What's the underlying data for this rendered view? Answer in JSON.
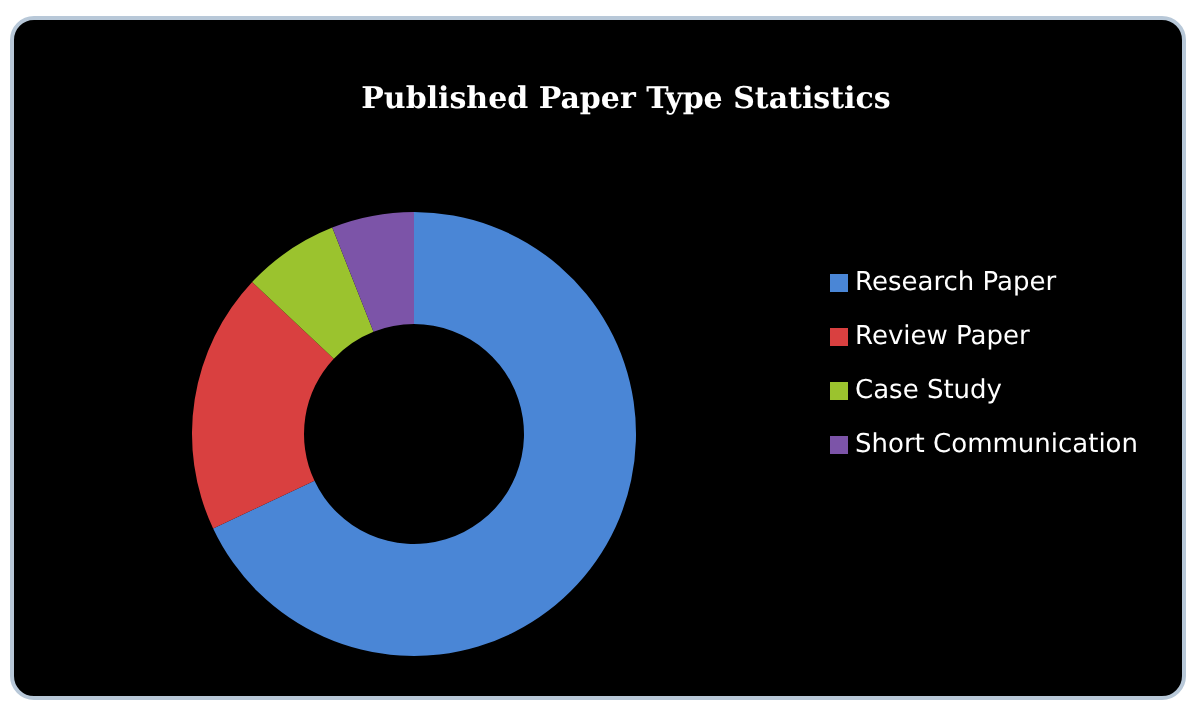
{
  "chart_data": {
    "type": "donut",
    "title": "Published Paper Type Statistics",
    "categories": [
      "Research Paper",
      "Review Paper",
      "Case Study",
      "Short Communication"
    ],
    "values": [
      68,
      19,
      7,
      6
    ],
    "colors": [
      "#4a86d6",
      "#d94040",
      "#9bc32e",
      "#7c54a8"
    ],
    "legend": "right"
  }
}
